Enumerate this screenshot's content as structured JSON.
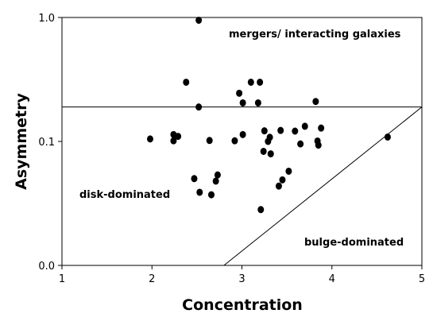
{
  "chart_data": {
    "type": "scatter",
    "title": "",
    "xlabel": "Concentration",
    "ylabel": "Asymmetry",
    "xlim": [
      1,
      5
    ],
    "ylim": [
      0.0,
      1.0
    ],
    "x_ticks": [
      1,
      2,
      3,
      4,
      5
    ],
    "x_tick_labels": [
      "1",
      "2",
      "3",
      "4",
      "5"
    ],
    "y_ticks": [
      0.0,
      0.1,
      1.0
    ],
    "y_tick_labels": [
      "0.0",
      "0.1",
      "1.0"
    ],
    "grid": false,
    "legend": "none",
    "point_color": "#000000",
    "annotations": [
      {
        "text": "mergers/ interacting galaxies"
      },
      {
        "text": "disk-dominated"
      },
      {
        "text": "bulge-dominated"
      }
    ],
    "boundaries": [
      {
        "type": "horizontal",
        "y": 0.35
      },
      {
        "type": "diagonal",
        "from": [
          2.8,
          0.0
        ],
        "to": [
          5.0,
          0.35
        ]
      }
    ],
    "points": [
      {
        "x": 2.52,
        "y": 0.98
      },
      {
        "x": 2.38,
        "y": 0.53
      },
      {
        "x": 2.52,
        "y": 0.35
      },
      {
        "x": 2.97,
        "y": 0.45
      },
      {
        "x": 3.1,
        "y": 0.53
      },
      {
        "x": 3.2,
        "y": 0.53
      },
      {
        "x": 3.01,
        "y": 0.38
      },
      {
        "x": 3.18,
        "y": 0.38
      },
      {
        "x": 3.82,
        "y": 0.39
      },
      {
        "x": 1.98,
        "y": 0.118
      },
      {
        "x": 2.24,
        "y": 0.15
      },
      {
        "x": 2.29,
        "y": 0.137
      },
      {
        "x": 2.24,
        "y": 0.105
      },
      {
        "x": 2.64,
        "y": 0.107
      },
      {
        "x": 2.92,
        "y": 0.105
      },
      {
        "x": 3.01,
        "y": 0.15
      },
      {
        "x": 3.25,
        "y": 0.177
      },
      {
        "x": 3.31,
        "y": 0.13
      },
      {
        "x": 3.43,
        "y": 0.18
      },
      {
        "x": 3.59,
        "y": 0.175
      },
      {
        "x": 3.7,
        "y": 0.21
      },
      {
        "x": 3.88,
        "y": 0.197
      },
      {
        "x": 3.29,
        "y": 0.1
      },
      {
        "x": 3.24,
        "y": 0.092
      },
      {
        "x": 3.32,
        "y": 0.09
      },
      {
        "x": 3.65,
        "y": 0.098
      },
      {
        "x": 3.84,
        "y": 0.103
      },
      {
        "x": 3.85,
        "y": 0.097
      },
      {
        "x": 2.47,
        "y": 0.07
      },
      {
        "x": 2.53,
        "y": 0.059
      },
      {
        "x": 2.66,
        "y": 0.057
      },
      {
        "x": 2.71,
        "y": 0.068
      },
      {
        "x": 2.73,
        "y": 0.073
      },
      {
        "x": 3.41,
        "y": 0.064
      },
      {
        "x": 3.45,
        "y": 0.069
      },
      {
        "x": 3.52,
        "y": 0.076
      },
      {
        "x": 3.21,
        "y": 0.045
      },
      {
        "x": 4.62,
        "y": 0.132
      }
    ]
  }
}
